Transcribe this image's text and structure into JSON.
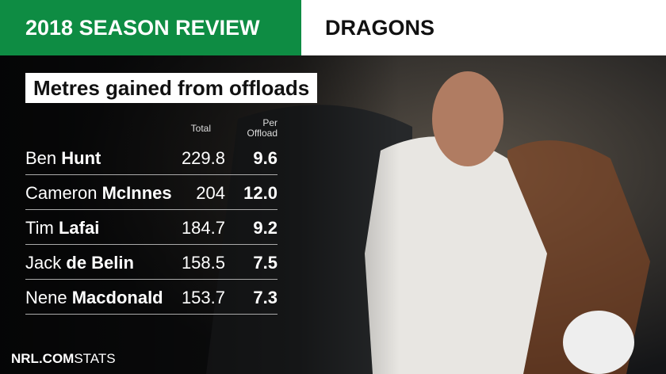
{
  "header": {
    "title": "2018 SEASON REVIEW",
    "team": "DRAGONS"
  },
  "subtitle": "Metres gained from offloads",
  "table": {
    "columns": [
      "Total",
      "Per Offload"
    ],
    "rows": [
      {
        "first": "Ben",
        "last": "Hunt",
        "total": "229.8",
        "per_offload": "9.6"
      },
      {
        "first": "Cameron",
        "last": "McInnes",
        "total": "204",
        "per_offload": "12.0"
      },
      {
        "first": "Tim",
        "last": "Lafai",
        "total": "184.7",
        "per_offload": "9.2"
      },
      {
        "first": "Jack",
        "last": "de Belin",
        "total": "158.5",
        "per_offload": "7.5"
      },
      {
        "first": "Nene",
        "last": "Macdonald",
        "total": "153.7",
        "per_offload": "7.3"
      }
    ]
  },
  "footer": {
    "brand": "NRL.COM",
    "label": "STATS"
  }
}
